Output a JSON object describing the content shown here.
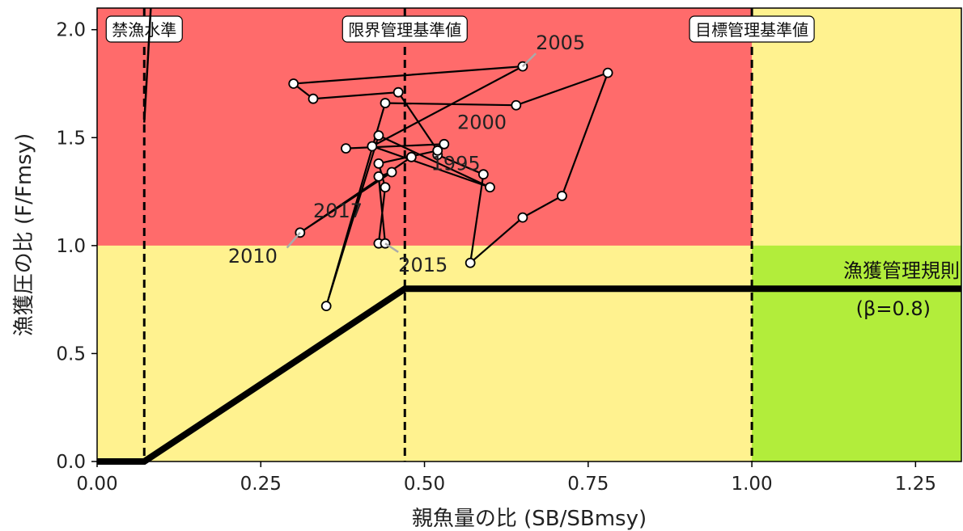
{
  "chart_data": {
    "type": "scatter",
    "xlabel": "親魚量の比 (SB/SBmsy)",
    "ylabel": "漁獲圧の比 (F/Fmsy)",
    "xlim": [
      0.0,
      1.32
    ],
    "ylim": [
      0.0,
      2.1
    ],
    "x_ticks": [
      0.0,
      0.25,
      0.5,
      0.75,
      1.0,
      1.25
    ],
    "x_tick_labels": [
      "0.00",
      "0.25",
      "0.50",
      "0.75",
      "1.00",
      "1.25"
    ],
    "y_ticks": [
      0.0,
      0.5,
      1.0,
      1.5,
      2.0
    ],
    "y_tick_labels": [
      "0.0",
      "0.5",
      "1.0",
      "1.5",
      "2.0"
    ],
    "grid": false,
    "zones": {
      "overfishing_color": "#ff6b6b",
      "caution_color": "#fff28f",
      "healthy_color": "#b2ed3b",
      "f_threshold": 1.0,
      "sb_threshold": 1.0
    },
    "reference_lines": [
      {
        "label": "禁漁水準",
        "x": 0.072
      },
      {
        "label": "限界管理基準値",
        "x": 0.47
      },
      {
        "label": "目標管理基準値",
        "x": 1.0
      }
    ],
    "harvest_control_rule": {
      "label": "漁獲管理規則",
      "sublabel": "(β=0.8)",
      "points": [
        [
          0.0,
          0.0
        ],
        [
          0.072,
          0.0
        ],
        [
          0.47,
          0.8
        ],
        [
          1.32,
          0.8
        ]
      ]
    },
    "trajectory_points": [
      {
        "x": 0.38,
        "y": 1.45
      },
      {
        "x": 0.53,
        "y": 1.47
      },
      {
        "x": 0.52,
        "y": 1.42
      },
      {
        "x": 0.59,
        "y": 1.33
      },
      {
        "x": 0.57,
        "y": 0.92
      },
      {
        "x": 0.65,
        "y": 1.13
      },
      {
        "x": 0.71,
        "y": 1.23
      },
      {
        "x": 0.78,
        "y": 1.8
      },
      {
        "x": 0.64,
        "y": 1.65
      },
      {
        "x": 0.44,
        "y": 1.66
      },
      {
        "x": 0.35,
        "y": 0.72
      },
      {
        "x": 0.43,
        "y": 1.51
      },
      {
        "x": 0.6,
        "y": 1.27
      },
      {
        "x": 0.42,
        "y": 1.46
      },
      {
        "x": 0.65,
        "y": 1.83
      },
      {
        "x": 0.3,
        "y": 1.75
      },
      {
        "x": 0.33,
        "y": 1.68
      },
      {
        "x": 0.46,
        "y": 1.71
      },
      {
        "x": 0.52,
        "y": 1.44
      },
      {
        "x": 0.43,
        "y": 1.38
      },
      {
        "x": 0.44,
        "y": 1.27
      },
      {
        "x": 0.43,
        "y": 1.01
      },
      {
        "x": 0.44,
        "y": 1.01
      },
      {
        "x": 0.43,
        "y": 1.32
      },
      {
        "x": 0.45,
        "y": 1.34
      },
      {
        "x": 0.31,
        "y": 1.06
      },
      {
        "x": 0.48,
        "y": 1.41
      }
    ],
    "annotations": [
      {
        "text": "1995",
        "x": 0.51,
        "y": 1.35
      },
      {
        "text": "2000",
        "x": 0.55,
        "y": 1.54
      },
      {
        "text": "2005",
        "x": 0.67,
        "y": 1.91
      },
      {
        "text": "2010",
        "x": 0.2,
        "y": 0.92
      },
      {
        "text": "2015",
        "x": 0.46,
        "y": 0.88
      },
      {
        "text": "2017",
        "x": 0.33,
        "y": 1.13
      }
    ],
    "leader_lines": [
      {
        "from": [
          0.65,
          1.83
        ],
        "to": [
          0.67,
          1.89
        ]
      },
      {
        "from": [
          0.31,
          1.06
        ],
        "to": [
          0.29,
          0.99
        ]
      },
      {
        "from": [
          0.44,
          1.01
        ],
        "to": [
          0.46,
          0.97
        ]
      }
    ]
  }
}
